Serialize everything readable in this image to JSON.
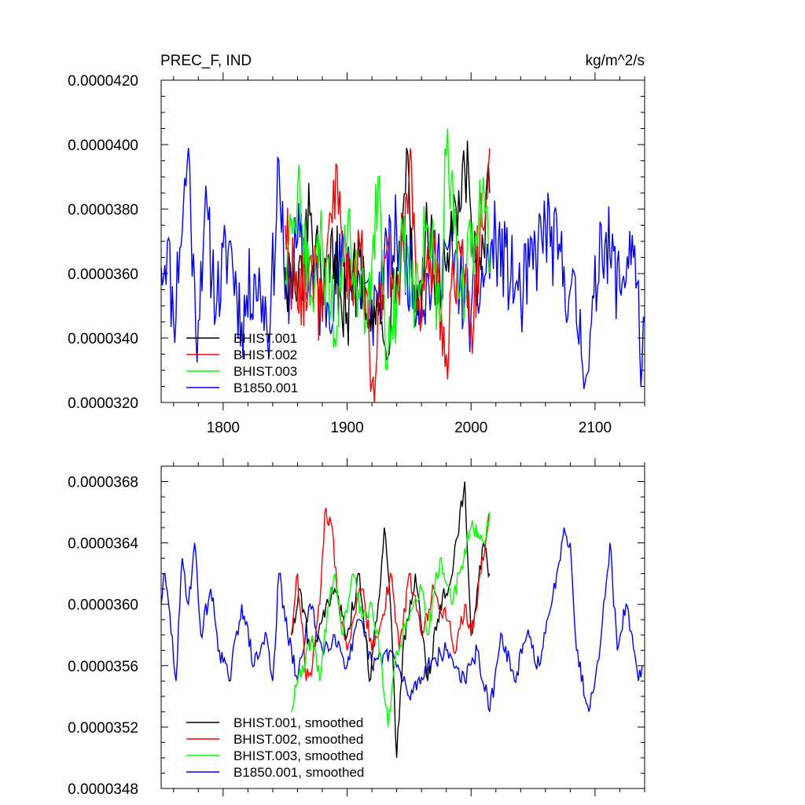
{
  "chart_data": [
    {
      "type": "line",
      "title_left": "PREC_F, IND",
      "title_right": "kg/m^2/s",
      "xlim": [
        1750,
        2140
      ],
      "ylim": [
        3.2e-05,
        4.2e-05
      ],
      "xticks": [
        1800,
        1900,
        2000,
        2100
      ],
      "xtick_labels": [
        "1800",
        "1900",
        "2000",
        "2100"
      ],
      "yticks": [
        3.2e-05,
        3.4e-05,
        3.6e-05,
        3.8e-05,
        4e-05,
        4.2e-05
      ],
      "ytick_labels": [
        "0.0000320",
        "0.0000340",
        "0.0000360",
        "0.0000380",
        "0.0000400",
        "0.0000420"
      ],
      "legend_position": "bottom-left",
      "series": [
        {
          "name": "B1850.001",
          "color": "#0000ff",
          "x_start": 1750,
          "x_end": 2140,
          "key_points": [
            [
              1750,
              3.62e-05
            ],
            [
              1755,
              3.7e-05
            ],
            [
              1760,
              3.45e-05
            ],
            [
              1765,
              3.68e-05
            ],
            [
              1772,
              3.99e-05
            ],
            [
              1778,
              3.4e-05
            ],
            [
              1785,
              3.78e-05
            ],
            [
              1795,
              3.52e-05
            ],
            [
              1805,
              3.7e-05
            ],
            [
              1815,
              3.45e-05
            ],
            [
              1825,
              3.6e-05
            ],
            [
              1838,
              3.45e-05
            ],
            [
              1845,
              3.95e-05
            ],
            [
              1850,
              3.52e-05
            ],
            [
              1860,
              3.7e-05
            ],
            [
              1880,
              3.5e-05
            ],
            [
              1900,
              3.65e-05
            ],
            [
              1920,
              3.48e-05
            ],
            [
              1940,
              3.72e-05
            ],
            [
              1960,
              3.52e-05
            ],
            [
              1980,
              3.68e-05
            ],
            [
              2000,
              3.48e-05
            ],
            [
              2020,
              3.7e-05
            ],
            [
              2040,
              3.52e-05
            ],
            [
              2060,
              3.75e-05
            ],
            [
              2080,
              3.55e-05
            ],
            [
              2095,
              3.3e-05
            ],
            [
              2105,
              3.75e-05
            ],
            [
              2120,
              3.55e-05
            ],
            [
              2130,
              3.72e-05
            ],
            [
              2138,
              3.32e-05
            ],
            [
              2140,
              3.45e-05
            ]
          ]
        },
        {
          "name": "BHIST.001",
          "color": "#000000",
          "x_start": 1850,
          "x_end": 2015,
          "key_points": [
            [
              1850,
              3.62e-05
            ],
            [
              1860,
              3.52e-05
            ],
            [
              1870,
              3.78e-05
            ],
            [
              1880,
              3.5e-05
            ],
            [
              1890,
              3.66e-05
            ],
            [
              1900,
              3.48e-05
            ],
            [
              1910,
              3.65e-05
            ],
            [
              1920,
              3.52e-05
            ],
            [
              1930,
              3.38e-05
            ],
            [
              1940,
              3.62e-05
            ],
            [
              1948,
              3.99e-05
            ],
            [
              1955,
              3.48e-05
            ],
            [
              1965,
              3.72e-05
            ],
            [
              1975,
              3.52e-05
            ],
            [
              1985,
              3.7e-05
            ],
            [
              1998,
              3.92e-05
            ],
            [
              2005,
              3.5e-05
            ],
            [
              2015,
              3.85e-05
            ]
          ]
        },
        {
          "name": "BHIST.002",
          "color": "#ff0000",
          "x_start": 1850,
          "x_end": 2015,
          "key_points": [
            [
              1850,
              3.75e-05
            ],
            [
              1860,
              3.5e-05
            ],
            [
              1870,
              3.65e-05
            ],
            [
              1880,
              3.45e-05
            ],
            [
              1892,
              3.93e-05
            ],
            [
              1900,
              3.52e-05
            ],
            [
              1910,
              3.7e-05
            ],
            [
              1921,
              3.28e-05
            ],
            [
              1930,
              3.65e-05
            ],
            [
              1940,
              3.5e-05
            ],
            [
              1950,
              3.92e-05
            ],
            [
              1960,
              3.45e-05
            ],
            [
              1970,
              3.68e-05
            ],
            [
              1980,
              3.35e-05
            ],
            [
              1990,
              3.7e-05
            ],
            [
              2000,
              3.45e-05
            ],
            [
              2014,
              3.93e-05
            ]
          ]
        },
        {
          "name": "BHIST.003",
          "color": "#00ff00",
          "x_start": 1850,
          "x_end": 2015,
          "key_points": [
            [
              1850,
              3.58e-05
            ],
            [
              1860,
              3.85e-05
            ],
            [
              1870,
              3.5e-05
            ],
            [
              1880,
              3.68e-05
            ],
            [
              1890,
              3.4e-05
            ],
            [
              1900,
              3.7e-05
            ],
            [
              1915,
              3.45e-05
            ],
            [
              1925,
              3.9e-05
            ],
            [
              1932,
              3.3e-05
            ],
            [
              1945,
              3.7e-05
            ],
            [
              1955,
              3.5e-05
            ],
            [
              1965,
              3.75e-05
            ],
            [
              1975,
              3.45e-05
            ],
            [
              1981,
              4.05e-05
            ],
            [
              1990,
              3.52e-05
            ],
            [
              2000,
              3.65e-05
            ],
            [
              2010,
              3.9e-05
            ],
            [
              2015,
              3.6e-05
            ]
          ]
        }
      ]
    },
    {
      "type": "line",
      "xlim": [
        1750,
        2140
      ],
      "ylim": [
        3.48e-05,
        3.69e-05
      ],
      "yticks": [
        3.48e-05,
        3.52e-05,
        3.56e-05,
        3.6e-05,
        3.64e-05,
        3.68e-05
      ],
      "ytick_labels": [
        "0.0000348",
        "0.0000352",
        "0.0000356",
        "0.0000360",
        "0.0000364",
        "0.0000368"
      ],
      "legend_position": "bottom-left",
      "series": [
        {
          "name": "B1850.001, smoothed",
          "color": "#0000ff",
          "x_start": 1750,
          "x_end": 2138,
          "key_points": [
            [
              1750,
              3.6e-05
            ],
            [
              1752,
              3.62e-05
            ],
            [
              1756,
              3.6e-05
            ],
            [
              1762,
              3.55e-05
            ],
            [
              1767,
              3.63e-05
            ],
            [
              1772,
              3.6e-05
            ],
            [
              1777,
              3.64e-05
            ],
            [
              1782,
              3.58e-05
            ],
            [
              1790,
              3.61e-05
            ],
            [
              1797,
              3.57e-05
            ],
            [
              1805,
              3.55e-05
            ],
            [
              1815,
              3.6e-05
            ],
            [
              1825,
              3.56e-05
            ],
            [
              1835,
              3.58e-05
            ],
            [
              1840,
              3.55e-05
            ],
            [
              1845,
              3.62e-05
            ],
            [
              1852,
              3.58e-05
            ],
            [
              1860,
              3.55e-05
            ],
            [
              1870,
              3.6e-05
            ],
            [
              1880,
              3.57e-05
            ],
            [
              1890,
              3.58e-05
            ],
            [
              1900,
              3.56e-05
            ],
            [
              1910,
              3.59e-05
            ],
            [
              1920,
              3.56e-05
            ],
            [
              1935,
              3.57e-05
            ],
            [
              1950,
              3.54e-05
            ],
            [
              1965,
              3.56e-05
            ],
            [
              1980,
              3.57e-05
            ],
            [
              1995,
              3.55e-05
            ],
            [
              2005,
              3.57e-05
            ],
            [
              2015,
              3.53e-05
            ],
            [
              2025,
              3.58e-05
            ],
            [
              2035,
              3.55e-05
            ],
            [
              2045,
              3.58e-05
            ],
            [
              2055,
              3.56e-05
            ],
            [
              2065,
              3.6e-05
            ],
            [
              2075,
              3.65e-05
            ],
            [
              2080,
              3.64e-05
            ],
            [
              2085,
              3.57e-05
            ],
            [
              2095,
              3.53e-05
            ],
            [
              2105,
              3.58e-05
            ],
            [
              2112,
              3.64e-05
            ],
            [
              2118,
              3.57e-05
            ],
            [
              2125,
              3.6e-05
            ],
            [
              2130,
              3.58e-05
            ],
            [
              2135,
              3.55e-05
            ],
            [
              2138,
              3.56e-05
            ]
          ]
        },
        {
          "name": "BHIST.001, smoothed",
          "color": "#000000",
          "x_start": 1855,
          "x_end": 2015,
          "key_points": [
            [
              1855,
              3.58e-05
            ],
            [
              1862,
              3.61e-05
            ],
            [
              1870,
              3.57e-05
            ],
            [
              1880,
              3.59e-05
            ],
            [
              1890,
              3.61e-05
            ],
            [
              1900,
              3.58e-05
            ],
            [
              1910,
              3.62e-05
            ],
            [
              1918,
              3.55e-05
            ],
            [
              1925,
              3.6e-05
            ],
            [
              1930,
              3.65e-05
            ],
            [
              1935,
              3.6e-05
            ],
            [
              1940,
              3.5e-05
            ],
            [
              1945,
              3.57e-05
            ],
            [
              1955,
              3.62e-05
            ],
            [
              1965,
              3.55e-05
            ],
            [
              1975,
              3.6e-05
            ],
            [
              1985,
              3.62e-05
            ],
            [
              1995,
              3.68e-05
            ],
            [
              2000,
              3.58e-05
            ],
            [
              2005,
              3.61e-05
            ],
            [
              2010,
              3.64e-05
            ],
            [
              2015,
              3.62e-05
            ]
          ]
        },
        {
          "name": "BHIST.002, smoothed",
          "color": "#ff0000",
          "x_start": 1855,
          "x_end": 2015,
          "key_points": [
            [
              1855,
              3.58e-05
            ],
            [
              1860,
              3.62e-05
            ],
            [
              1867,
              3.55e-05
            ],
            [
              1872,
              3.56e-05
            ],
            [
              1878,
              3.6e-05
            ],
            [
              1882,
              3.66e-05
            ],
            [
              1888,
              3.65e-05
            ],
            [
              1893,
              3.6e-05
            ],
            [
              1900,
              3.57e-05
            ],
            [
              1905,
              3.59e-05
            ],
            [
              1912,
              3.61e-05
            ],
            [
              1920,
              3.57e-05
            ],
            [
              1928,
              3.59e-05
            ],
            [
              1935,
              3.62e-05
            ],
            [
              1942,
              3.57e-05
            ],
            [
              1950,
              3.62e-05
            ],
            [
              1960,
              3.58e-05
            ],
            [
              1970,
              3.61e-05
            ],
            [
              1980,
              3.59e-05
            ],
            [
              1988,
              3.57e-05
            ],
            [
              1995,
              3.6e-05
            ],
            [
              2000,
              3.58e-05
            ],
            [
              2008,
              3.62e-05
            ],
            [
              2015,
              3.66e-05
            ]
          ]
        },
        {
          "name": "BHIST.003, smoothed",
          "color": "#00ff00",
          "x_start": 1855,
          "x_end": 2015,
          "key_points": [
            [
              1855,
              3.53e-05
            ],
            [
              1860,
              3.55e-05
            ],
            [
              1866,
              3.56e-05
            ],
            [
              1872,
              3.58e-05
            ],
            [
              1878,
              3.55e-05
            ],
            [
              1885,
              3.6e-05
            ],
            [
              1890,
              3.62e-05
            ],
            [
              1896,
              3.58e-05
            ],
            [
              1905,
              3.62e-05
            ],
            [
              1912,
              3.59e-05
            ],
            [
              1920,
              3.6e-05
            ],
            [
              1928,
              3.56e-05
            ],
            [
              1933,
              3.52e-05
            ],
            [
              1940,
              3.57e-05
            ],
            [
              1950,
              3.59e-05
            ],
            [
              1960,
              3.61e-05
            ],
            [
              1965,
              3.58e-05
            ],
            [
              1975,
              3.63e-05
            ],
            [
              1985,
              3.6e-05
            ],
            [
              1990,
              3.62e-05
            ],
            [
              2000,
              3.65e-05
            ],
            [
              2010,
              3.64e-05
            ],
            [
              2015,
              3.66e-05
            ]
          ]
        }
      ]
    }
  ]
}
